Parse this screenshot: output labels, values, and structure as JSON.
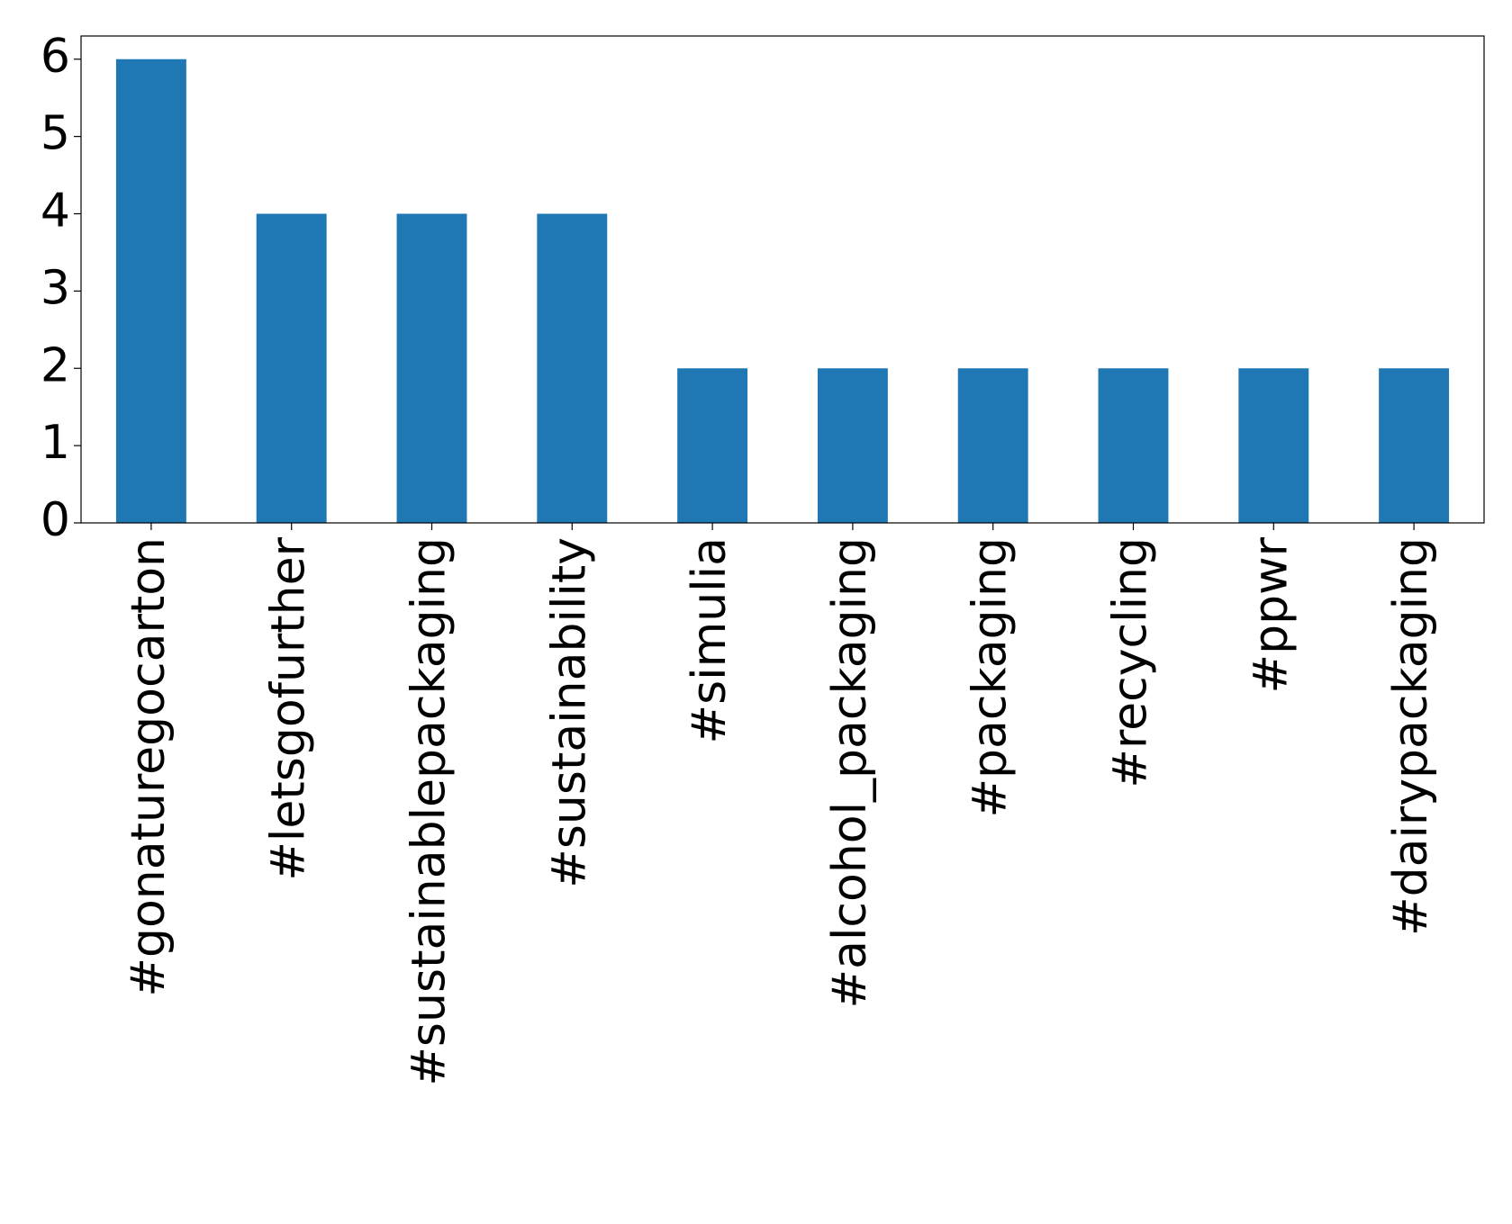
{
  "chart_data": {
    "type": "bar",
    "categories": [
      "#gonaturegocarton",
      "#letsgofurther",
      "#sustainablepackaging",
      "#sustainability",
      "#simulia",
      "#alcohol_packaging",
      "#packaging",
      "#recycling",
      "#ppwr",
      "#dairypackaging"
    ],
    "values": [
      6,
      4,
      4,
      4,
      2,
      2,
      2,
      2,
      2,
      2
    ],
    "color": "#1f77b4",
    "ylim": [
      0,
      6.3
    ],
    "yticks": [
      0,
      1,
      2,
      3,
      4,
      5,
      6
    ]
  }
}
